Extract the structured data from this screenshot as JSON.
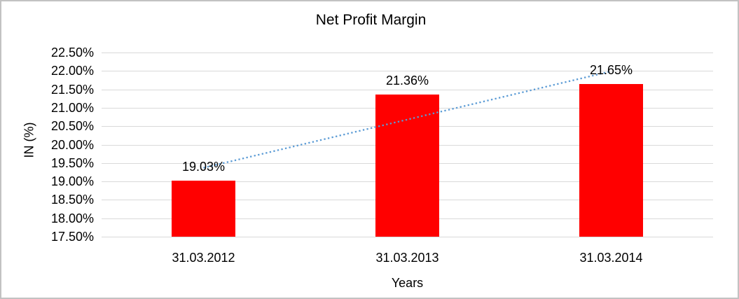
{
  "chart_data": {
    "type": "bar",
    "title": "Net Profit Margin",
    "xlabel": "Years",
    "ylabel": "IN (%)",
    "categories": [
      "31.03.2012",
      "31.03.2013",
      "31.03.2014"
    ],
    "values": [
      19.03,
      21.36,
      21.65
    ],
    "data_labels": [
      "19.03%",
      "21.36%",
      "21.65%"
    ],
    "ylim": [
      17.5,
      22.5
    ],
    "ytick_step": 0.5,
    "ytick_labels": [
      "22.50%",
      "22.00%",
      "21.50%",
      "21.00%",
      "20.50%",
      "20.00%",
      "19.50%",
      "19.00%",
      "18.50%",
      "18.00%",
      "17.50%"
    ],
    "grid": true,
    "legend_position": "none",
    "bar_color": "#ff0000",
    "gridline_color": "#d9d9d9",
    "trendline": {
      "type": "linear",
      "style": "dotted",
      "color": "#5b9bd5"
    }
  }
}
